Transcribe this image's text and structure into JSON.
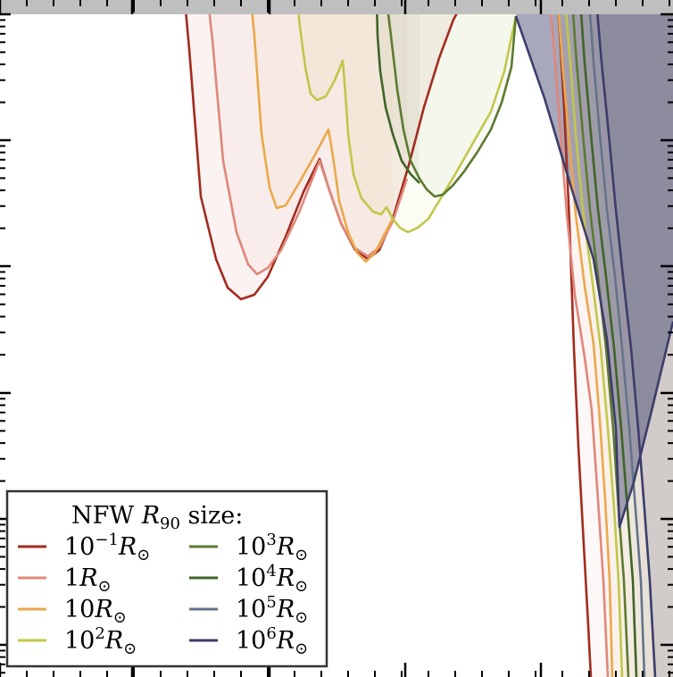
{
  "chart_data": {
    "type": "area",
    "title": "",
    "xlabel": "",
    "ylabel": "",
    "grid": false,
    "legend": {
      "title": "NFW R90 size:",
      "title_main": "NFW ",
      "title_var": "R",
      "title_sub": "90",
      "title_tail": " size:",
      "placement": "bottom-left",
      "columns": 2
    },
    "series": [
      {
        "name": "10^-1 R_sun",
        "base": "10",
        "exp": "−1",
        "unit": "R",
        "unit_sub": "⊙",
        "color": "#a32b1f",
        "fill_opacity": 0.06,
        "upper": [
          [
            207,
            0
          ],
          [
            212,
            55
          ],
          [
            225,
            220
          ],
          [
            242,
            290
          ],
          [
            255,
            322
          ],
          [
            270,
            335
          ],
          [
            285,
            330
          ],
          [
            300,
            310
          ],
          [
            320,
            265
          ],
          [
            340,
            215
          ],
          [
            358,
            178
          ],
          [
            368,
            210
          ],
          [
            382,
            250
          ],
          [
            398,
            280
          ],
          [
            412,
            290
          ],
          [
            425,
            280
          ],
          [
            440,
            245
          ],
          [
            458,
            185
          ],
          [
            475,
            120
          ],
          [
            492,
            65
          ],
          [
            508,
            22
          ],
          [
            520,
            0
          ]
        ],
        "cliff": [
          [
            625,
            0
          ],
          [
            632,
            120
          ],
          [
            638,
            250
          ],
          [
            643,
            390
          ],
          [
            648,
            500
          ],
          [
            654,
            610
          ],
          [
            659,
            700
          ],
          [
            662,
            758
          ]
        ]
      },
      {
        "name": "1 R_sun",
        "base": "1",
        "exp": "",
        "unit": "R",
        "unit_sub": "⊙",
        "color": "#e0877a",
        "fill_opacity": 0.05,
        "upper": [
          [
            233,
            0
          ],
          [
            238,
            45
          ],
          [
            250,
            180
          ],
          [
            265,
            260
          ],
          [
            278,
            296
          ],
          [
            288,
            307
          ],
          [
            300,
            300
          ],
          [
            315,
            280
          ],
          [
            335,
            238
          ],
          [
            358,
            180
          ],
          [
            368,
            210
          ],
          [
            382,
            250
          ],
          [
            398,
            278
          ],
          [
            412,
            287
          ],
          [
            425,
            277
          ],
          [
            440,
            248
          ],
          [
            456,
            200
          ]
        ],
        "cliff": [
          [
            616,
            0
          ],
          [
            622,
            70
          ],
          [
            628,
            150
          ],
          [
            635,
            240
          ],
          [
            644,
            330
          ],
          [
            655,
            400
          ],
          [
            663,
            460
          ],
          [
            670,
            560
          ],
          [
            676,
            650
          ],
          [
            681,
            758
          ]
        ]
      },
      {
        "name": "10 R_sun",
        "base": "10",
        "exp": "",
        "unit": "R",
        "unit_sub": "⊙",
        "color": "#eba84a",
        "fill_opacity": 0.05,
        "upper": [
          [
            281,
            0
          ],
          [
            285,
            40
          ],
          [
            293,
            150
          ],
          [
            302,
            210
          ],
          [
            310,
            233
          ],
          [
            320,
            230
          ],
          [
            335,
            205
          ],
          [
            352,
            175
          ],
          [
            368,
            145
          ],
          [
            373,
            175
          ],
          [
            380,
            225
          ],
          [
            390,
            260
          ],
          [
            400,
            283
          ],
          [
            410,
            293
          ],
          [
            420,
            283
          ],
          [
            432,
            260
          ],
          [
            440,
            245
          ]
        ],
        "cliff": [
          [
            625,
            0
          ],
          [
            630,
            70
          ],
          [
            637,
            150
          ],
          [
            645,
            240
          ],
          [
            655,
            320
          ],
          [
            665,
            385
          ],
          [
            672,
            470
          ],
          [
            678,
            560
          ],
          [
            683,
            650
          ],
          [
            686,
            758
          ]
        ]
      },
      {
        "name": "10^2 R_sun",
        "base": "10",
        "exp": "2",
        "unit": "R",
        "unit_sub": "⊙",
        "color": "#c0c848",
        "fill_opacity": 0.06,
        "upper": [
          [
            333,
            0
          ],
          [
            336,
            30
          ],
          [
            342,
            75
          ],
          [
            348,
            105
          ],
          [
            355,
            112
          ],
          [
            365,
            108
          ],
          [
            375,
            90
          ],
          [
            384,
            68
          ],
          [
            387,
            105
          ],
          [
            390,
            150
          ],
          [
            396,
            195
          ],
          [
            405,
            222
          ],
          [
            418,
            237
          ],
          [
            427,
            240
          ],
          [
            433,
            232
          ],
          [
            440,
            245
          ],
          [
            448,
            255
          ],
          [
            457,
            260
          ],
          [
            468,
            255
          ],
          [
            480,
            245
          ],
          [
            492,
            225
          ],
          [
            510,
            195
          ],
          [
            530,
            160
          ],
          [
            550,
            125
          ],
          [
            565,
            80
          ],
          [
            578,
            18
          ]
        ],
        "cliff": [
          [
            633,
            0
          ],
          [
            639,
            70
          ],
          [
            645,
            150
          ],
          [
            653,
            235
          ],
          [
            663,
            310
          ],
          [
            673,
            390
          ],
          [
            681,
            480
          ],
          [
            688,
            570
          ],
          [
            693,
            650
          ],
          [
            697,
            758
          ]
        ]
      },
      {
        "name": "10^3 R_sun",
        "base": "10",
        "exp": "3",
        "unit": "R",
        "unit_sub": "⊙",
        "color": "#5d7a30",
        "fill_opacity": 0.04,
        "upper": [
          [
            433,
            0
          ],
          [
            438,
            40
          ],
          [
            445,
            100
          ],
          [
            452,
            145
          ],
          [
            460,
            180
          ],
          [
            470,
            200
          ],
          [
            478,
            212
          ],
          [
            487,
            220
          ],
          [
            496,
            218
          ],
          [
            507,
            208
          ],
          [
            520,
            192
          ],
          [
            535,
            170
          ],
          [
            550,
            145
          ],
          [
            562,
            115
          ],
          [
            573,
            75
          ],
          [
            578,
            18
          ]
        ],
        "cliff": [
          [
            641,
            0
          ],
          [
            646,
            70
          ],
          [
            653,
            150
          ],
          [
            661,
            235
          ],
          [
            670,
            310
          ],
          [
            679,
            390
          ],
          [
            687,
            480
          ],
          [
            693,
            570
          ],
          [
            699,
            650
          ],
          [
            704,
            758
          ]
        ]
      },
      {
        "name": "10^4 R_sun",
        "base": "10",
        "exp": "4",
        "unit": "R",
        "unit_sub": "⊙",
        "color": "#3f6428",
        "fill_opacity": 0.05,
        "upper": [
          [
            422,
            0
          ],
          [
            423,
            40
          ],
          [
            426,
            80
          ],
          [
            432,
            120
          ],
          [
            440,
            150
          ],
          [
            450,
            180
          ],
          [
            460,
            195
          ],
          [
            470,
            205
          ]
        ],
        "cliff": [
          [
            650,
            0
          ],
          [
            655,
            70
          ],
          [
            662,
            150
          ],
          [
            670,
            235
          ],
          [
            679,
            310
          ],
          [
            688,
            390
          ],
          [
            696,
            480
          ],
          [
            703,
            570
          ],
          [
            709,
            650
          ],
          [
            713,
            758
          ]
        ]
      },
      {
        "name": "10^5 R_sun",
        "base": "10",
        "exp": "5",
        "unit": "R",
        "unit_sub": "⊙",
        "color": "#67728a",
        "fill_opacity": 0.1,
        "upper": [],
        "cliff": [
          [
            660,
            0
          ],
          [
            665,
            70
          ],
          [
            672,
            150
          ],
          [
            680,
            235
          ],
          [
            689,
            310
          ],
          [
            697,
            390
          ],
          [
            705,
            480
          ],
          [
            712,
            570
          ],
          [
            718,
            650
          ],
          [
            722,
            758
          ]
        ]
      },
      {
        "name": "10^6 R_sun",
        "base": "10",
        "exp": "6",
        "unit": "R",
        "unit_sub": "⊙",
        "color": "#3c3d6a",
        "fill_opacity": 0.45,
        "upper": [
          [
            578,
            18
          ],
          [
            610,
            110
          ],
          [
            640,
            210
          ],
          [
            665,
            290
          ],
          [
            680,
            380
          ],
          [
            690,
            480
          ],
          [
            694,
            590
          ],
          [
            710,
            540
          ],
          [
            730,
            460
          ],
          [
            754,
            360
          ]
        ],
        "cliff": [
          [
            668,
            0
          ],
          [
            674,
            70
          ],
          [
            682,
            150
          ],
          [
            690,
            235
          ],
          [
            698,
            310
          ],
          [
            707,
            390
          ],
          [
            715,
            480
          ],
          [
            722,
            570
          ],
          [
            728,
            650
          ],
          [
            734,
            758
          ]
        ]
      }
    ]
  }
}
